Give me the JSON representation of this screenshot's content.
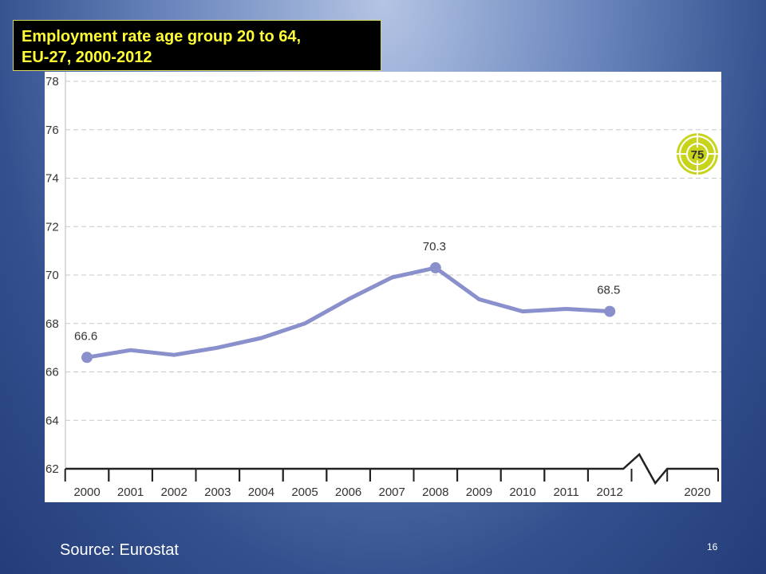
{
  "slide": {
    "title_lines": [
      "Employment rate age group 20 to 64,",
      "EU-27, 2000-2012"
    ],
    "source": "Source: Eurostat",
    "slide_number": "16"
  },
  "chart_data": {
    "type": "line",
    "title": "Employment rate age group 20 to 64, EU-27, 2000-2012",
    "xlabel": "",
    "ylabel": "",
    "ylim": [
      62,
      78
    ],
    "yticks": [
      62,
      64,
      66,
      68,
      70,
      72,
      74,
      76,
      78
    ],
    "xtick_labels": [
      "2000",
      "2001",
      "2002",
      "2003",
      "2004",
      "2005",
      "2006",
      "2007",
      "2008",
      "2009",
      "2010",
      "2011",
      "2012",
      "2020"
    ],
    "grid": "horizontal dashed",
    "x": [
      2000,
      2001,
      2002,
      2003,
      2004,
      2005,
      2006,
      2007,
      2008,
      2009,
      2010,
      2011,
      2012
    ],
    "series": [
      {
        "values": [
          66.6,
          66.9,
          66.7,
          67.0,
          67.4,
          68.0,
          69.0,
          69.9,
          70.3,
          69.0,
          68.5,
          68.6,
          68.5
        ]
      }
    ],
    "data_labels": [
      {
        "x": 2000,
        "value": 66.6,
        "text": "66.6"
      },
      {
        "x": 2008,
        "value": 70.3,
        "text": "70.3"
      },
      {
        "x": 2012,
        "value": 68.5,
        "text": "68.5"
      }
    ],
    "target": {
      "x": 2020,
      "value": 75,
      "label": "75"
    },
    "axis_break_between": [
      2012,
      2020
    ],
    "colors": {
      "line": "#8a90cc",
      "grid": "#c8c8c8",
      "target": "#c8d41c",
      "axis": "#222222"
    }
  }
}
